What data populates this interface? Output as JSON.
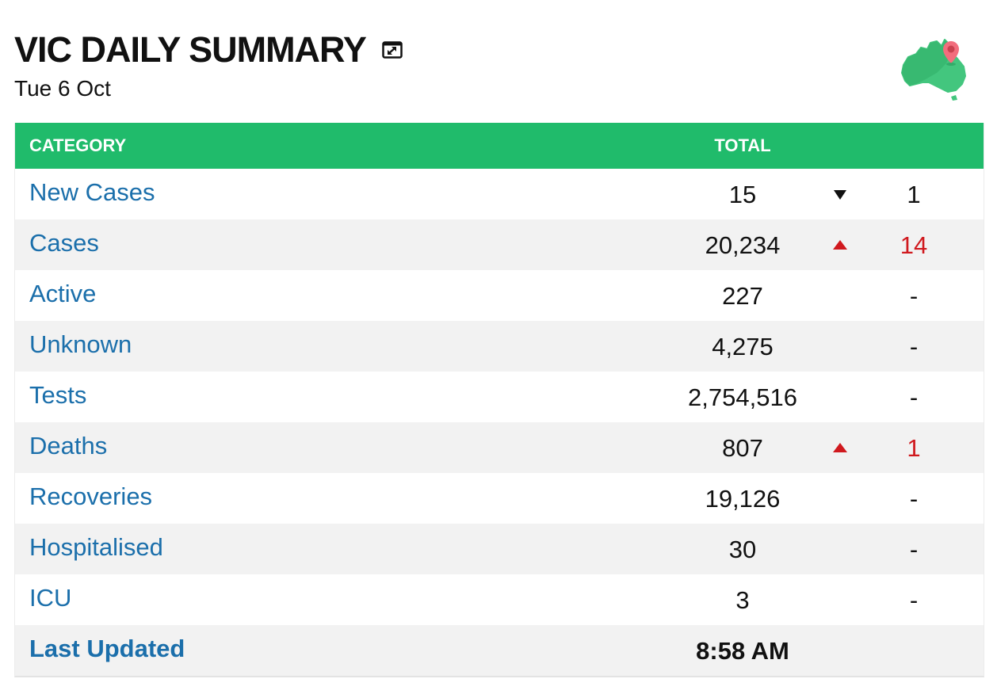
{
  "header": {
    "title": "VIC DAILY SUMMARY",
    "date": "Tue 6 Oct",
    "expand_icon": "expand-icon",
    "logo_icon": "australia-map-pin-icon"
  },
  "colors": {
    "header_green": "#20bb6b",
    "link_blue": "#1b6fab",
    "increase_red": "#d0191e",
    "row_alt": "#f2f2f2"
  },
  "table": {
    "columns": {
      "category": "CATEGORY",
      "total": "TOTAL"
    },
    "rows": [
      {
        "category": "New Cases",
        "total": "15",
        "trend": "down",
        "change": "1"
      },
      {
        "category": "Cases",
        "total": "20,234",
        "trend": "up",
        "change": "14"
      },
      {
        "category": "Active",
        "total": "227",
        "trend": "none",
        "change": "-"
      },
      {
        "category": "Unknown",
        "total": "4,275",
        "trend": "none",
        "change": "-"
      },
      {
        "category": "Tests",
        "total": "2,754,516",
        "trend": "none",
        "change": "-"
      },
      {
        "category": "Deaths",
        "total": "807",
        "trend": "up",
        "change": "1"
      },
      {
        "category": "Recoveries",
        "total": "19,126",
        "trend": "none",
        "change": "-"
      },
      {
        "category": "Hospitalised",
        "total": "30",
        "trend": "none",
        "change": "-"
      },
      {
        "category": "ICU",
        "total": "3",
        "trend": "none",
        "change": "-"
      }
    ],
    "last_updated": {
      "label": "Last Updated",
      "value": "8:58 AM"
    }
  }
}
